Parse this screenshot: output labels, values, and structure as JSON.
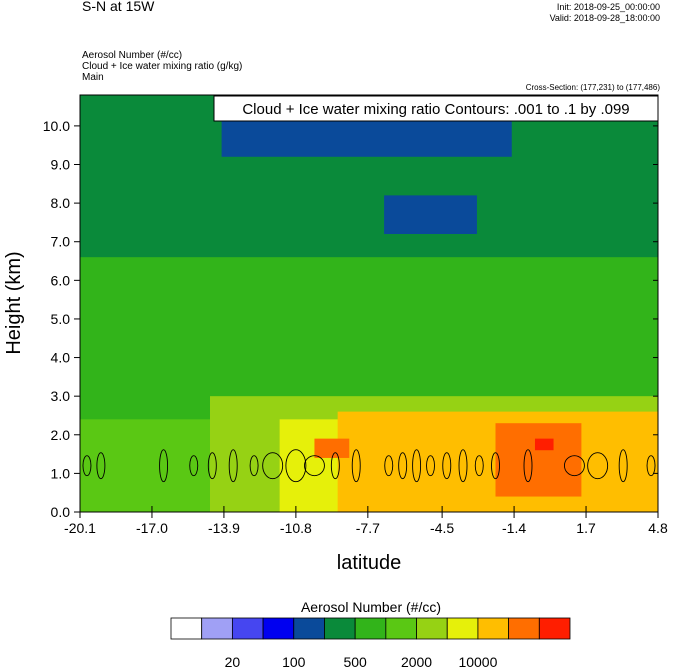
{
  "header": {
    "title": "S-N at 15W",
    "init": "Init: 2018-09-25_00:00:00",
    "valid": "Valid: 2018-09-28_18:00:00",
    "fields": [
      "Aerosol Number   (#/cc)",
      "Cloud + Ice water mixing ratio   (g/kg)",
      "Main"
    ],
    "cross_section": "Cross-Section: (177,231) to (177,486)"
  },
  "chart_data": {
    "type": "heatmap",
    "title": "S-N at 15W",
    "xlabel": "latitude",
    "ylabel": "Height (km)",
    "xlim": [
      -20.1,
      4.8
    ],
    "ylim": [
      0.0,
      10.8
    ],
    "x_ticks": [
      -20.1,
      -17.0,
      -13.9,
      -10.8,
      -7.7,
      -4.5,
      -1.4,
      1.7,
      4.8
    ],
    "x_tick_labels": [
      "-20.1",
      "-17.0",
      "-13.9",
      "-10.8",
      "-7.7",
      "-4.5",
      "-1.4",
      "1.7",
      "4.8"
    ],
    "y_ticks": [
      0.0,
      1.0,
      2.0,
      3.0,
      4.0,
      5.0,
      6.0,
      7.0,
      8.0,
      9.0,
      10.0
    ],
    "y_tick_labels": [
      "0.0",
      "1.0",
      "2.0",
      "3.0",
      "4.0",
      "5.0",
      "6.0",
      "7.0",
      "8.0",
      "9.0",
      "10.0"
    ],
    "contour_label": "Cloud + Ice water mixing ratio Contours: .001 to .1 by .099",
    "contour_levels": [
      0.001,
      0.1
    ],
    "colorbar": {
      "title": "Aerosol Number  (#/cc)",
      "tick_labels": [
        "20",
        "100",
        "500",
        "2000",
        "10000"
      ],
      "colors": [
        "#ffffff",
        "#a0a0f5",
        "#4646f0",
        "#0000f0",
        "#0a4a9a",
        "#0a8a3a",
        "#32b41a",
        "#5ac814",
        "#96d214",
        "#e6f00a",
        "#ffbe00",
        "#ff6e00",
        "#ff1e00"
      ]
    },
    "field_regions": [
      {
        "x": [
          -20.1,
          4.8
        ],
        "y": [
          0.0,
          10.8
        ],
        "level": 5
      },
      {
        "x": [
          -20.1,
          4.8
        ],
        "y": [
          0.0,
          6.6
        ],
        "level": 6
      },
      {
        "x": [
          -20.1,
          4.8
        ],
        "y": [
          0.0,
          2.4
        ],
        "level": 7
      },
      {
        "x": [
          -14.5,
          4.8
        ],
        "y": [
          0.0,
          3.0
        ],
        "level": 8
      },
      {
        "x": [
          -11.5,
          4.8
        ],
        "y": [
          0.0,
          2.4
        ],
        "level": 9
      },
      {
        "x": [
          -9.0,
          4.8
        ],
        "y": [
          0.0,
          2.6
        ],
        "level": 10
      },
      {
        "x": [
          -2.2,
          1.5
        ],
        "y": [
          0.4,
          2.3
        ],
        "level": 11
      },
      {
        "x": [
          -10.0,
          -8.5
        ],
        "y": [
          1.4,
          1.9
        ],
        "level": 11
      },
      {
        "x": [
          -0.5,
          0.3
        ],
        "y": [
          1.6,
          1.9
        ],
        "level": 12
      },
      {
        "x": [
          -14.0,
          -1.5
        ],
        "y": [
          9.2,
          10.8
        ],
        "level": 4
      },
      {
        "x": [
          -7.0,
          -3.0
        ],
        "y": [
          7.2,
          8.2
        ],
        "level": 4
      }
    ]
  }
}
